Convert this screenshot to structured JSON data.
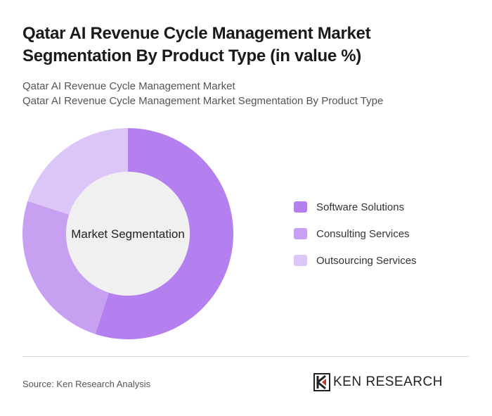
{
  "chart_data": {
    "type": "donut",
    "title": "Qatar AI Revenue Cycle Management Market Segmentation By Product Type (in value %)",
    "subtitle": "Qatar AI Revenue Cycle Management Market",
    "subtitle2": "Qatar AI Revenue Cycle Management Market Segmentation By Product Type",
    "center_label": "Market Segmentation",
    "categories": [
      "Software Solutions",
      "Consulting Services",
      "Outsourcing Services"
    ],
    "values": [
      55,
      25,
      20
    ],
    "colors": [
      "#b47fee",
      "#c8a0f2",
      "#dcc6f8"
    ],
    "source": "Source: Ken Research Analysis"
  },
  "brand": "KEN RESEARCH"
}
